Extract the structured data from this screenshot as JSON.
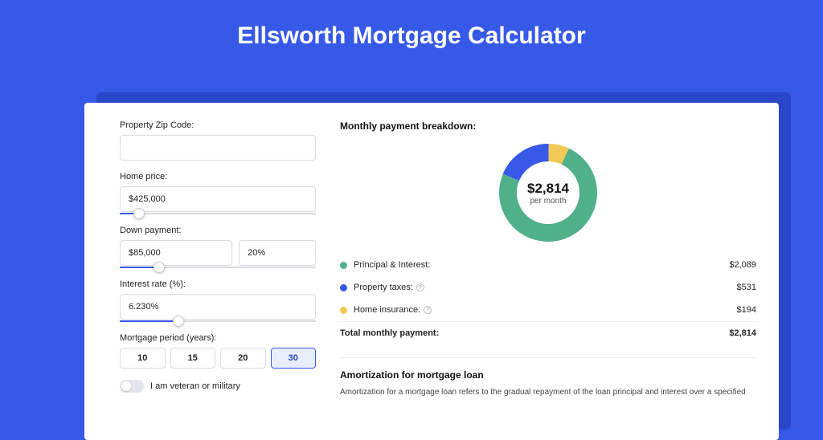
{
  "page": {
    "title": "Ellsworth Mortgage Calculator",
    "bg_color": "#3759e8",
    "shadow_color": "#2a46c9",
    "card_bg": "#ffffff"
  },
  "form": {
    "zip": {
      "label": "Property Zip Code:",
      "value": ""
    },
    "home_price": {
      "label": "Home price:",
      "value": "$425,000",
      "slider_pct": 10
    },
    "down_payment": {
      "label": "Down payment:",
      "value": "$85,000",
      "pct_value": "20%",
      "slider_pct": 20
    },
    "interest": {
      "label": "Interest rate (%):",
      "value": "6.230%",
      "slider_pct": 30
    },
    "period": {
      "label": "Mortgage period (years):",
      "options": [
        "10",
        "15",
        "20",
        "30"
      ],
      "selected": "30"
    },
    "veteran": {
      "label": "I am veteran or military",
      "checked": false
    }
  },
  "breakdown": {
    "title": "Monthly payment breakdown:",
    "center_amount": "$2,814",
    "center_sub": "per month",
    "donut": {
      "segments": [
        {
          "key": "principal_interest",
          "pct": 74.2,
          "color": "#4fb08a"
        },
        {
          "key": "property_taxes",
          "pct": 18.9,
          "color": "#3759e8"
        },
        {
          "key": "home_insurance",
          "pct": 6.9,
          "color": "#f2c955"
        }
      ],
      "stroke_width": 22,
      "bg": "#ffffff"
    },
    "items": [
      {
        "label": "Principal & Interest:",
        "value": "$2,089",
        "color": "#4fb08a",
        "info": false
      },
      {
        "label": "Property taxes:",
        "value": "$531",
        "color": "#3759e8",
        "info": true
      },
      {
        "label": "Home insurance:",
        "value": "$194",
        "color": "#f2c955",
        "info": true
      }
    ],
    "total": {
      "label": "Total monthly payment:",
      "value": "$2,814"
    }
  },
  "amortization": {
    "title": "Amortization for mortgage loan",
    "text": "Amortization for a mortgage loan refers to the gradual repayment of the loan principal and interest over a specified"
  }
}
